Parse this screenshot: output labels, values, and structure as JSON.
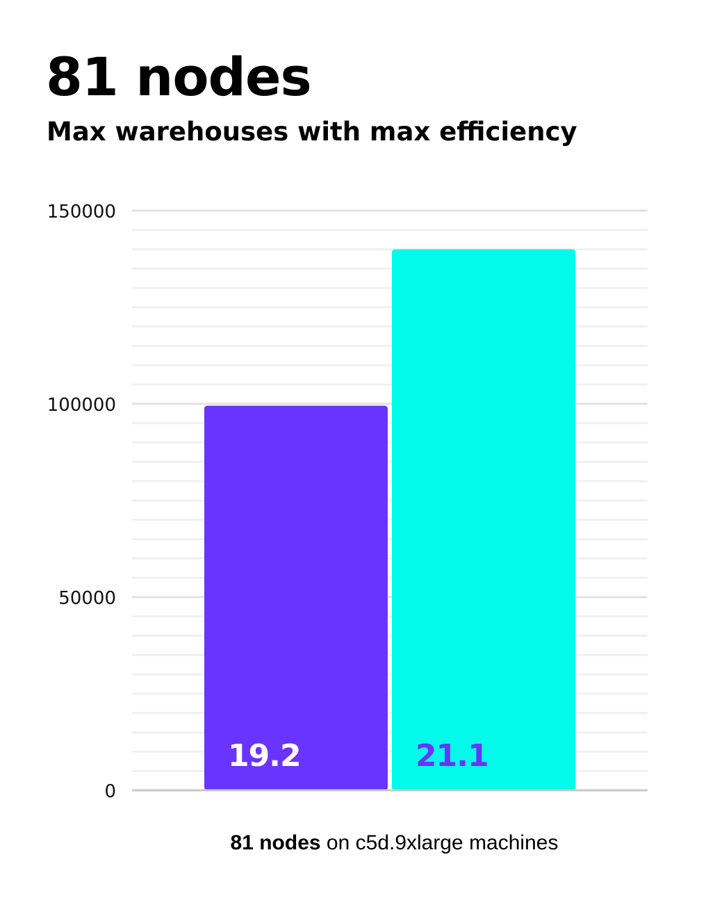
{
  "chart_data": {
    "type": "bar",
    "title": "81 nodes",
    "subtitle": "Max warehouses with max efficiency",
    "categories": [
      "19.2",
      "21.1"
    ],
    "values": [
      99500,
      140000
    ],
    "data_labels": [
      "19.2",
      "21.1"
    ],
    "colors": [
      "#6a34ff",
      "#00fbea"
    ],
    "data_label_colors": [
      "#ffffff",
      "#6a34ff"
    ],
    "xlabel_bold": "81 nodes",
    "xlabel_rest": " on c5d.9xlarge machines",
    "ylabel": "",
    "ylim": [
      0,
      150000
    ],
    "yticks": [
      "0",
      "50000",
      "100000",
      "150000"
    ],
    "minor_grid_step": 5000,
    "grid": true,
    "legend": "none"
  }
}
